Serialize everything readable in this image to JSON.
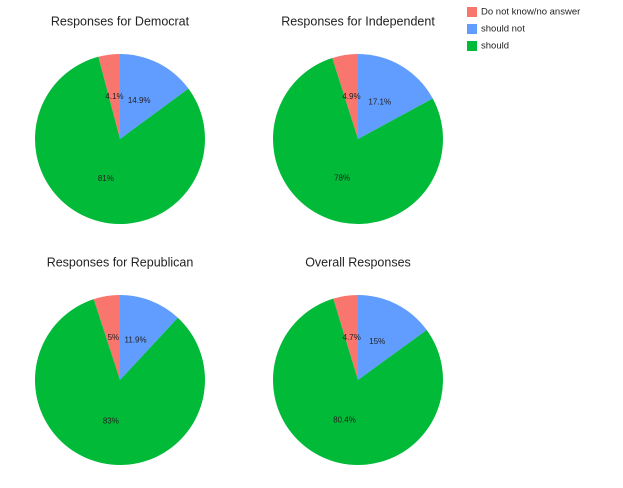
{
  "chart_data": [
    {
      "type": "pie",
      "title": "Responses for Democrat",
      "categories": [
        "Do not know/no answer",
        "should not",
        "should"
      ],
      "values": [
        4.1,
        14.9,
        81
      ],
      "value_labels": [
        "4.1%",
        "14.9%",
        "81%"
      ],
      "colors": [
        "#f8766d",
        "#619cff",
        "#00ba38"
      ]
    },
    {
      "type": "pie",
      "title": "Responses for Independent",
      "categories": [
        "Do not know/no answer",
        "should not",
        "should"
      ],
      "values": [
        4.9,
        17.1,
        78
      ],
      "value_labels": [
        "4.9%",
        "17.1%",
        "78%"
      ],
      "colors": [
        "#f8766d",
        "#619cff",
        "#00ba38"
      ]
    },
    {
      "type": "pie",
      "title": "Responses for Republican",
      "categories": [
        "Do not know/no answer",
        "should not",
        "should"
      ],
      "values": [
        5,
        11.9,
        83
      ],
      "value_labels": [
        "5%",
        "11.9%",
        "83%"
      ],
      "colors": [
        "#f8766d",
        "#619cff",
        "#00ba38"
      ]
    },
    {
      "type": "pie",
      "title": "Overall Responses",
      "categories": [
        "Do not know/no answer",
        "should not",
        "should"
      ],
      "values": [
        4.7,
        15,
        80.4
      ],
      "value_labels": [
        "4.7%",
        "15%",
        "80.4%"
      ],
      "colors": [
        "#f8766d",
        "#619cff",
        "#00ba38"
      ]
    }
  ]
}
